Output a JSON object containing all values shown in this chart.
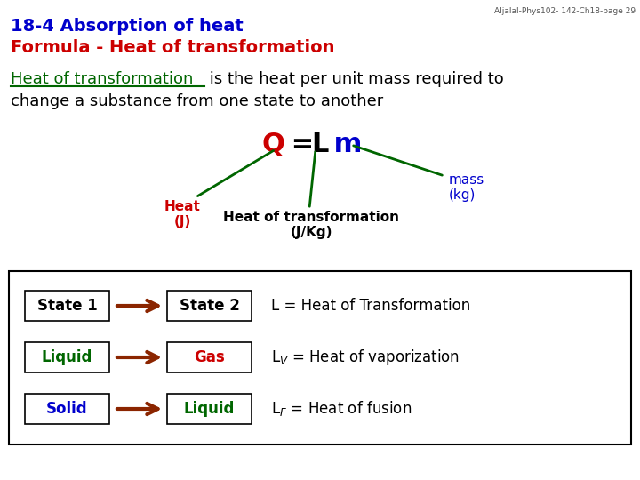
{
  "bg_color": "#ffffff",
  "watermark": "Aljalal-Phys102- 142-Ch18-page 29",
  "title_line1": "18-4 Absorption of heat",
  "title_line2": "Formula - Heat of transformation",
  "title_color1": "#0000cc",
  "title_color2": "#cc0000",
  "body_text1_green": "Heat of transformation",
  "body_text1_black": " is the heat per unit mass required to",
  "body_text2": "change a substance from one state to another",
  "body_color_green": "#006600",
  "body_color_black": "#000000",
  "formula_Q": "Q",
  "formula_eq": " = ",
  "formula_L": "L",
  "formula_m": " m",
  "formula_Q_color": "#cc0000",
  "formula_eq_color": "#000000",
  "formula_L_color": "#000000",
  "formula_m_color": "#0000cc",
  "arrow_color": "#006600",
  "label_heat_j": "Heat\n(J)",
  "label_heat_j_color": "#cc0000",
  "label_hot": "Heat of transformation\n(J/Kg)",
  "label_hot_color": "#000000",
  "label_mass": "mass\n(kg)",
  "label_mass_color": "#0000cc",
  "box_border_color": "#000000",
  "box_fill_color": "#ffffff",
  "arrow_box_color": "#8B2500",
  "rows": [
    {
      "left": "State 1",
      "left_color": "#000000",
      "right": "State 2",
      "right_color": "#000000",
      "desc": "L = Heat of Transformation",
      "desc_color": "#000000"
    },
    {
      "left": "Liquid",
      "left_color": "#006600",
      "right": "Gas",
      "right_color": "#cc0000",
      "desc": "L$_V$ = Heat of vaporization",
      "desc_color": "#000000"
    },
    {
      "left": "Solid",
      "left_color": "#0000cc",
      "right": "Liquid",
      "right_color": "#006600",
      "desc": "L$_F$ = Heat of fusion",
      "desc_color": "#000000"
    }
  ]
}
